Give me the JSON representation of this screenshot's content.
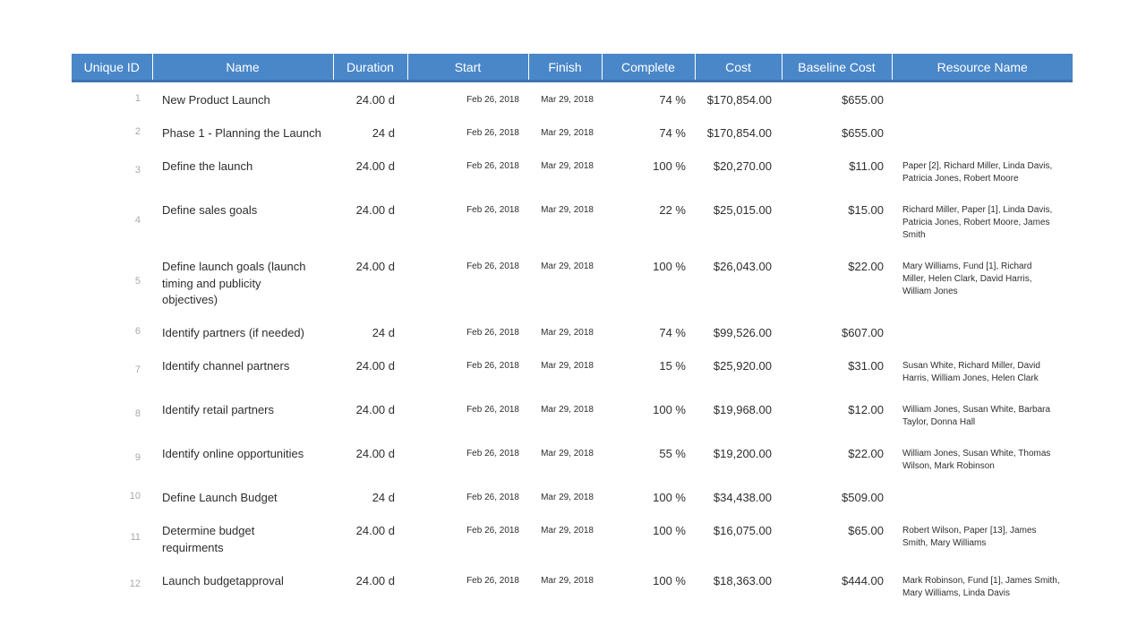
{
  "colors": {
    "header_bg": "#4A87C9",
    "header_border": "#3F74B0",
    "header_text": "#FFFFFF",
    "body_text": "#2E2E2E",
    "id_text": "#A8A8A8",
    "page_bg": "#FFFFFF"
  },
  "table": {
    "columns": [
      {
        "key": "unique_id",
        "label": "Unique ID"
      },
      {
        "key": "name",
        "label": "Name"
      },
      {
        "key": "duration",
        "label": "Duration"
      },
      {
        "key": "start",
        "label": "Start"
      },
      {
        "key": "finish",
        "label": "Finish"
      },
      {
        "key": "complete",
        "label": "Complete"
      },
      {
        "key": "cost",
        "label": "Cost"
      },
      {
        "key": "baseline_cost",
        "label": "Baseline Cost"
      },
      {
        "key": "resource_name",
        "label": "Resource Name"
      }
    ],
    "rows": [
      {
        "unique_id": "1",
        "name": "New Product Launch",
        "duration": "24.00 d",
        "start": "Feb 26, 2018",
        "finish": "Mar 29, 2018",
        "complete": "74 %",
        "cost": "$170,854.00",
        "baseline_cost": "$655.00",
        "resource_name": ""
      },
      {
        "unique_id": "2",
        "name": "Phase 1 - Planning the Launch",
        "duration": "24 d",
        "start": "Feb 26, 2018",
        "finish": "Mar 29, 2018",
        "complete": "74 %",
        "cost": "$170,854.00",
        "baseline_cost": "$655.00",
        "resource_name": ""
      },
      {
        "unique_id": "3",
        "name": "Define the launch",
        "duration": "24.00 d",
        "start": "Feb 26, 2018",
        "finish": "Mar 29, 2018",
        "complete": "100 %",
        "cost": "$20,270.00",
        "baseline_cost": "$11.00",
        "resource_name": "Paper [2], Richard Miller, Linda Davis,\nPatricia Jones, Robert Moore"
      },
      {
        "unique_id": "4",
        "name": "Define sales goals",
        "duration": "24.00 d",
        "start": "Feb 26, 2018",
        "finish": "Mar 29, 2018",
        "complete": "22 %",
        "cost": "$25,015.00",
        "baseline_cost": "$15.00",
        "resource_name": "Richard Miller, Paper [1], Linda Davis,\nPatricia Jones, Robert Moore, James\nSmith"
      },
      {
        "unique_id": "5",
        "name": "Define launch goals (launch\ntiming and publicity\nobjectives)",
        "duration": "24.00 d",
        "start": "Feb 26, 2018",
        "finish": "Mar 29, 2018",
        "complete": "100 %",
        "cost": "$26,043.00",
        "baseline_cost": "$22.00",
        "resource_name": "Mary Williams, Fund [1], Richard\nMiller, Helen Clark, David Harris,\nWilliam Jones"
      },
      {
        "unique_id": "6",
        "name": "Identify partners (if needed)",
        "duration": "24 d",
        "start": "Feb 26, 2018",
        "finish": "Mar 29, 2018",
        "complete": "74 %",
        "cost": "$99,526.00",
        "baseline_cost": "$607.00",
        "resource_name": ""
      },
      {
        "unique_id": "7",
        "name": "Identify channel partners",
        "duration": "24.00 d",
        "start": "Feb 26, 2018",
        "finish": "Mar 29, 2018",
        "complete": "15 %",
        "cost": "$25,920.00",
        "baseline_cost": "$31.00",
        "resource_name": "Susan White, Richard Miller, David\nHarris, William Jones, Helen Clark"
      },
      {
        "unique_id": "8",
        "name": "Identify retail partners",
        "duration": "24.00 d",
        "start": "Feb 26, 2018",
        "finish": "Mar 29, 2018",
        "complete": "100 %",
        "cost": "$19,968.00",
        "baseline_cost": "$12.00",
        "resource_name": "William Jones, Susan White, Barbara\nTaylor, Donna Hall"
      },
      {
        "unique_id": "9",
        "name": "Identify online opportunities",
        "duration": "24.00 d",
        "start": "Feb 26, 2018",
        "finish": "Mar 29, 2018",
        "complete": "55 %",
        "cost": "$19,200.00",
        "baseline_cost": "$22.00",
        "resource_name": "William Jones, Susan White, Thomas\nWilson, Mark Robinson"
      },
      {
        "unique_id": "10",
        "name": "Define Launch Budget",
        "duration": "24 d",
        "start": "Feb 26, 2018",
        "finish": "Mar 29, 2018",
        "complete": "100 %",
        "cost": "$34,438.00",
        "baseline_cost": "$509.00",
        "resource_name": ""
      },
      {
        "unique_id": "11",
        "name": "Determine budget\nrequirments",
        "duration": "24.00 d",
        "start": "Feb 26, 2018",
        "finish": "Mar 29, 2018",
        "complete": "100 %",
        "cost": "$16,075.00",
        "baseline_cost": "$65.00",
        "resource_name": "Robert Wilson, Paper [13], James\nSmith, Mary Williams"
      },
      {
        "unique_id": "12",
        "name": "Launch budgetapproval",
        "duration": "24.00 d",
        "start": "Feb 26, 2018",
        "finish": "Mar 29, 2018",
        "complete": "100 %",
        "cost": "$18,363.00",
        "baseline_cost": "$444.00",
        "resource_name": "Mark Robinson, Fund [1], James Smith,\nMary Williams, Linda Davis"
      }
    ]
  }
}
